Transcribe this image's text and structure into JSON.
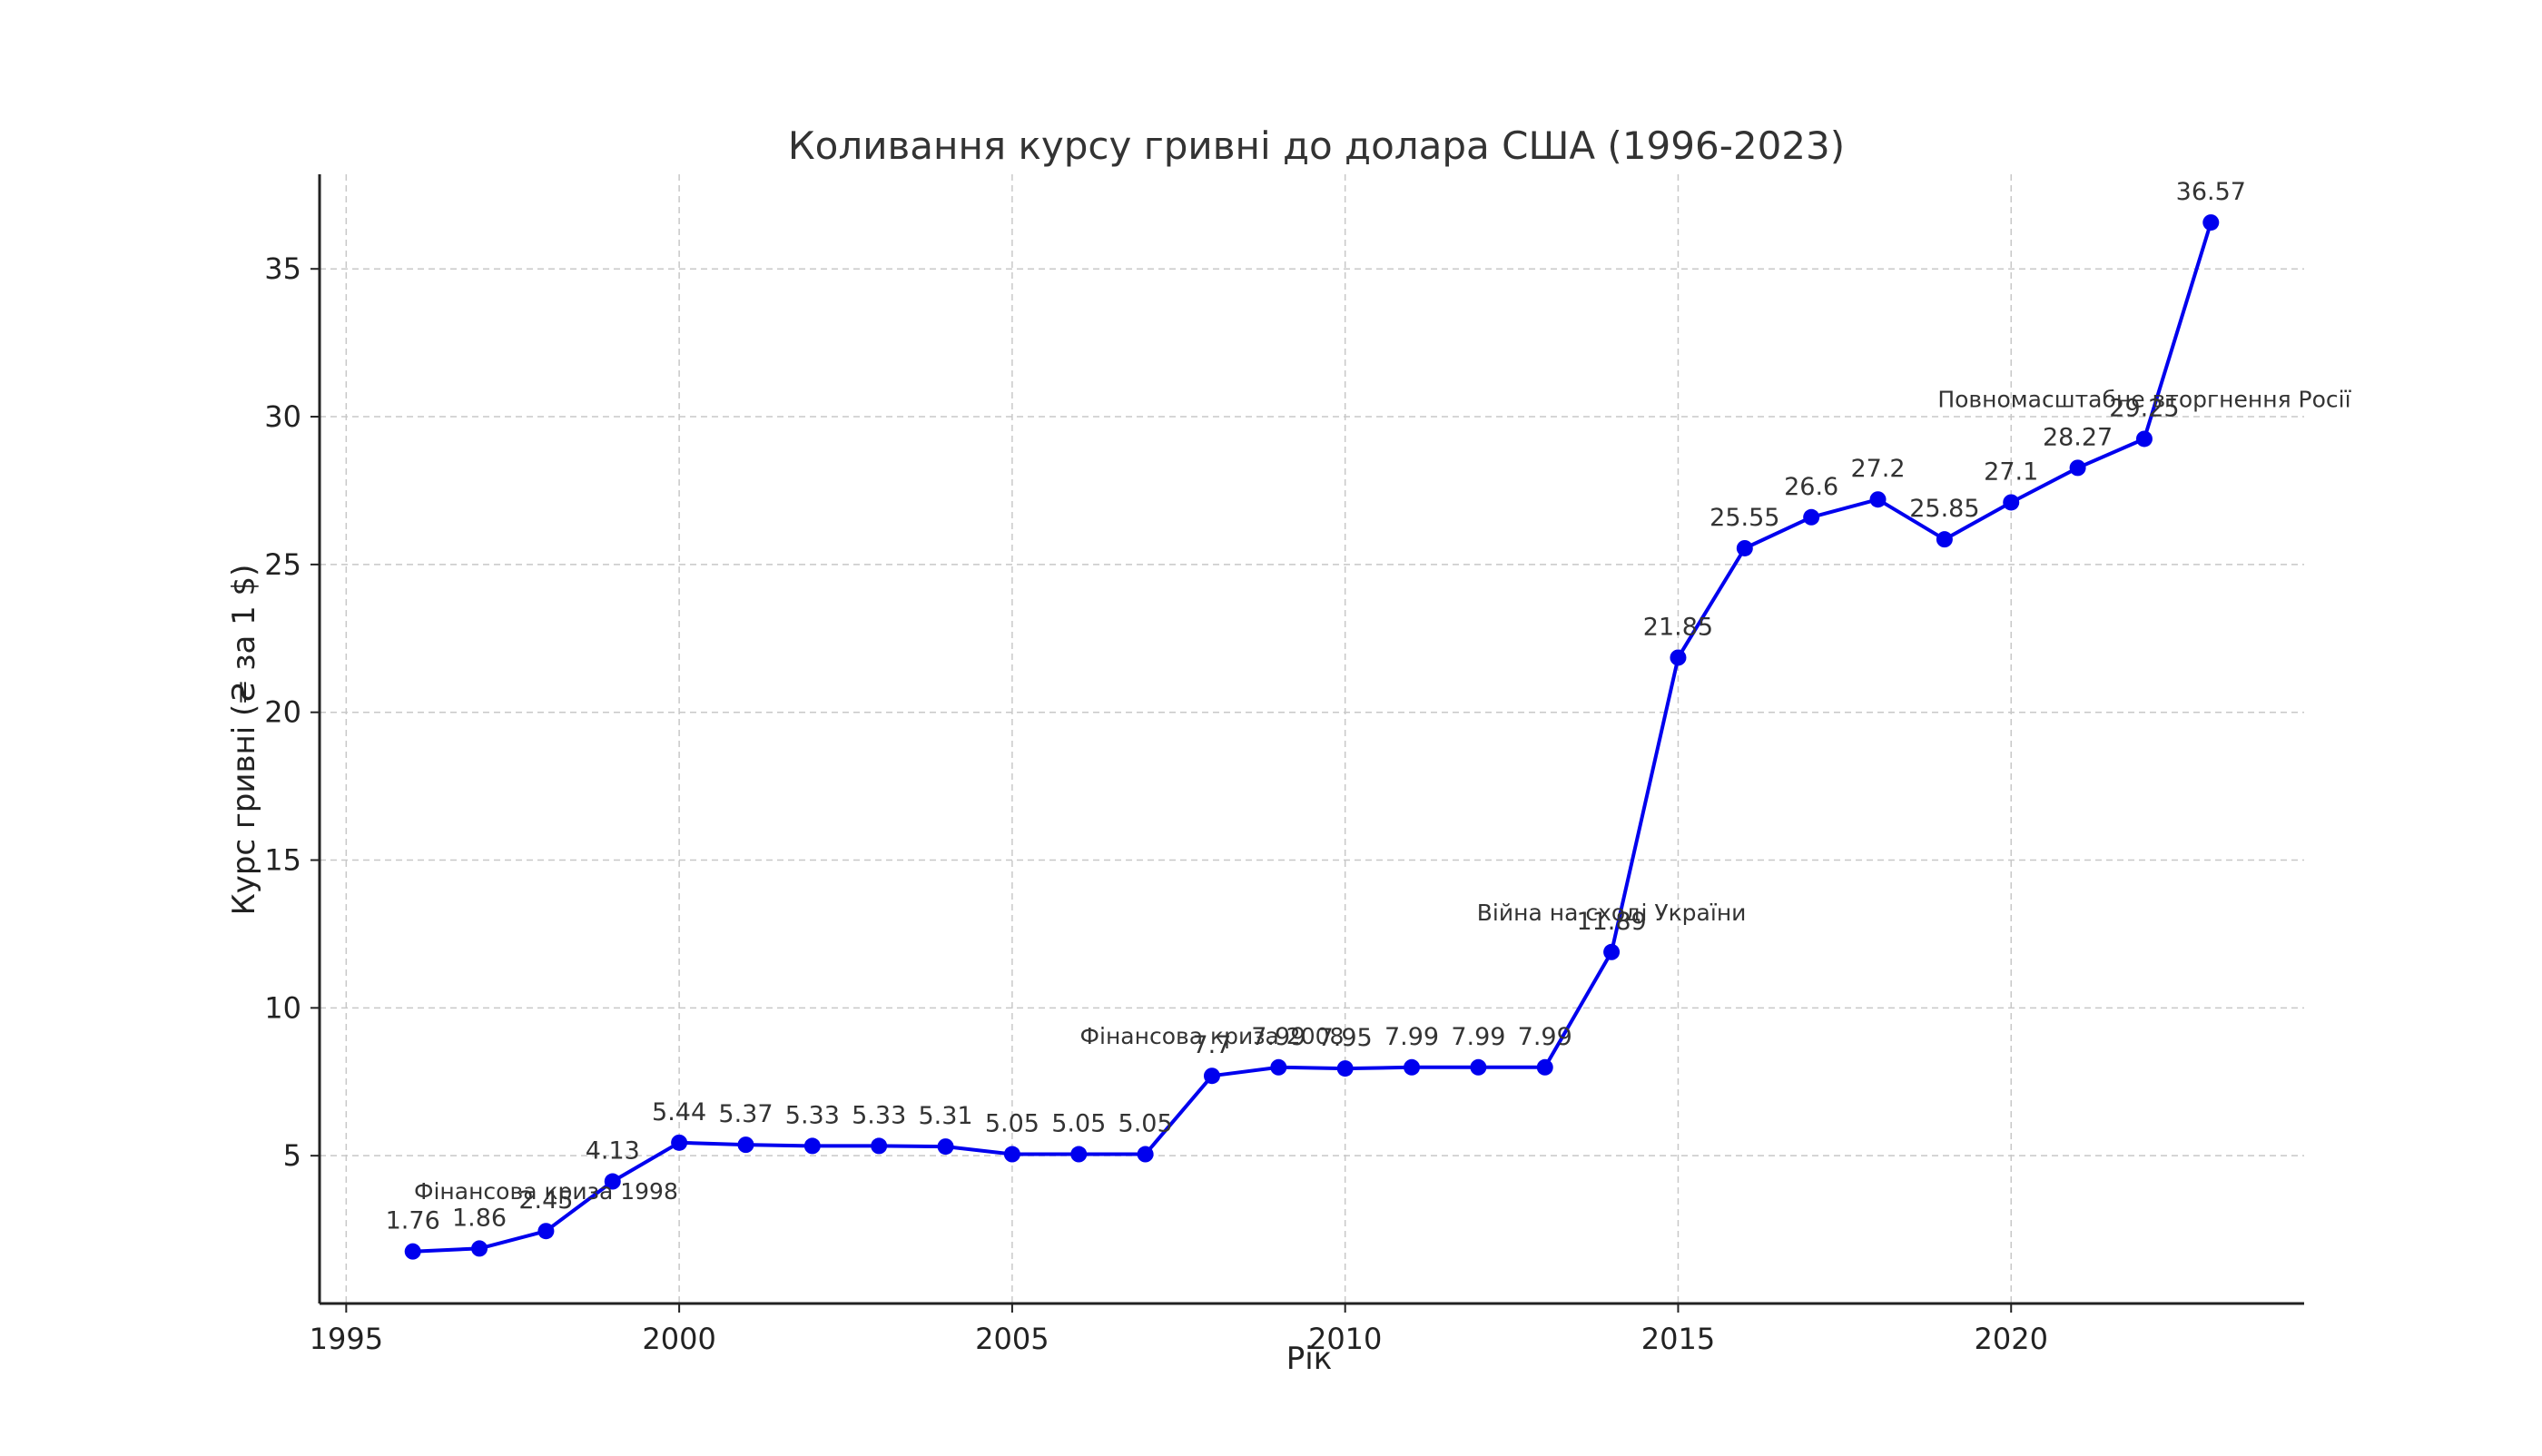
{
  "chart_data": {
    "type": "line",
    "title": "Коливання курсу гривні до долара США (1996-2023)",
    "xlabel": "Рік",
    "ylabel": "Курс гривні (₴ за 1 $)",
    "xlim": [
      1994.6,
      2024.4
    ],
    "ylim": [
      0.0,
      38.2
    ],
    "x_ticks": [
      1995,
      2000,
      2005,
      2010,
      2015,
      2020
    ],
    "y_ticks": [
      5,
      10,
      15,
      20,
      25,
      30,
      35
    ],
    "grid": true,
    "legend": null,
    "series": [
      {
        "name": "Курс гривні",
        "color": "#0000ee",
        "marker": "circle",
        "x": [
          1996,
          1997,
          1998,
          1999,
          2000,
          2001,
          2002,
          2003,
          2004,
          2005,
          2006,
          2007,
          2008,
          2009,
          2010,
          2011,
          2012,
          2013,
          2014,
          2015,
          2016,
          2017,
          2018,
          2019,
          2020,
          2021,
          2022,
          2023
        ],
        "values": [
          1.76,
          1.86,
          2.45,
          4.13,
          5.44,
          5.37,
          5.33,
          5.33,
          5.31,
          5.05,
          5.05,
          5.05,
          7.7,
          7.99,
          7.95,
          7.99,
          7.99,
          7.99,
          11.89,
          21.85,
          25.55,
          26.6,
          27.2,
          25.85,
          27.1,
          28.27,
          29.25,
          36.57
        ],
        "labels": [
          "1.76",
          "1.86",
          "2.45",
          "4.13",
          "5.44",
          "5.37",
          "5.33",
          "5.33",
          "5.31",
          "5.05",
          "5.05",
          "5.05",
          "7.7",
          "7.99",
          "7.95",
          "7.99",
          "7.99",
          "7.99",
          "11.89",
          "21.85",
          "25.55",
          "26.6",
          "27.2",
          "25.85",
          "27.1",
          "28.27",
          "29.25",
          "36.57"
        ]
      }
    ],
    "annotations": [
      {
        "text": "Фінансова криза 1998",
        "x": 1998,
        "y": 2.45
      },
      {
        "text": "Фінансова криза 2008",
        "x": 2008,
        "y": 7.7
      },
      {
        "text": "Війна на сході України",
        "x": 2014,
        "y": 11.89
      },
      {
        "text": "Повномасштабне вторгнення Росії",
        "x": 2022,
        "y": 29.25
      }
    ]
  }
}
